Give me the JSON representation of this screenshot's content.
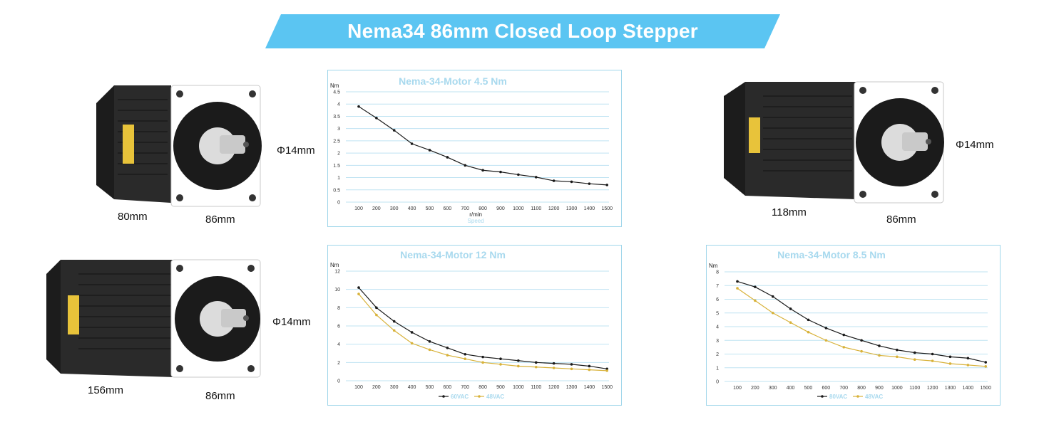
{
  "banner": {
    "title": "Nema34 86mm Closed Loop Stepper"
  },
  "motors": [
    {
      "length": "80mm",
      "face": "86mm",
      "shaft": "Φ14mm"
    },
    {
      "length": "118mm",
      "face": "86mm",
      "shaft": "Φ14mm"
    },
    {
      "length": "156mm",
      "face": "86mm",
      "shaft": "Φ14mm"
    }
  ],
  "colors": {
    "banner": "#5bc5f2",
    "frame": "#9fd6ea",
    "title": "#a8d9ee",
    "grid": "#bfe3f2",
    "series_black": "#1a1a1a",
    "series_gold": "#d8b23a"
  },
  "chart_data": [
    {
      "type": "line",
      "title": "Nema-34-Motor 4.5 Nm",
      "ylabel": "Nm",
      "xlabel": "r/min",
      "xlabel2": "Speed",
      "x": [
        100,
        200,
        300,
        400,
        500,
        600,
        700,
        800,
        900,
        1000,
        1100,
        1200,
        1300,
        1400,
        1500
      ],
      "yticks": [
        "0",
        "0.5",
        "1",
        "1.5",
        "2",
        "2.5",
        "3",
        "3.5",
        "4",
        "4.5"
      ],
      "ylim": [
        0,
        4.5
      ],
      "grid": true,
      "series": [
        {
          "values": [
            3.9,
            3.43,
            2.93,
            2.38,
            2.12,
            1.83,
            1.5,
            1.3,
            1.23,
            1.12,
            1.02,
            0.87,
            0.83,
            0.75,
            0.7
          ]
        }
      ]
    },
    {
      "type": "line",
      "title": "Nema-34-Motor 12 Nm",
      "ylabel": "Nm",
      "x": [
        100,
        200,
        300,
        400,
        500,
        600,
        700,
        800,
        900,
        1000,
        1100,
        1200,
        1300,
        1400,
        1500
      ],
      "yticks": [
        "0",
        "2",
        "4",
        "6",
        "8",
        "10",
        "12"
      ],
      "ylim": [
        0,
        12
      ],
      "grid": true,
      "legend": "bottom",
      "series": [
        {
          "name": "60VAC",
          "values": [
            10.2,
            8.0,
            6.5,
            5.3,
            4.3,
            3.6,
            2.9,
            2.6,
            2.4,
            2.2,
            2.0,
            1.9,
            1.8,
            1.6,
            1.3
          ]
        },
        {
          "name": "48VAC",
          "values": [
            9.5,
            7.2,
            5.5,
            4.1,
            3.4,
            2.8,
            2.4,
            2.0,
            1.8,
            1.6,
            1.5,
            1.4,
            1.3,
            1.2,
            1.1
          ]
        }
      ]
    },
    {
      "type": "line",
      "title": "Nema-34-Motor 8.5 Nm",
      "ylabel": "Nm",
      "x": [
        100,
        200,
        300,
        400,
        500,
        600,
        700,
        800,
        900,
        1000,
        1100,
        1200,
        1300,
        1400,
        1500
      ],
      "yticks": [
        "0",
        "1",
        "2",
        "3",
        "4",
        "5",
        "6",
        "7",
        "8"
      ],
      "ylim": [
        0,
        8
      ],
      "grid": true,
      "legend": "bottom",
      "series": [
        {
          "name": "80VAC",
          "values": [
            7.3,
            6.9,
            6.2,
            5.3,
            4.5,
            3.9,
            3.4,
            3.0,
            2.6,
            2.3,
            2.1,
            2.0,
            1.8,
            1.7,
            1.4
          ]
        },
        {
          "name": "48VAC",
          "values": [
            6.8,
            5.9,
            5.0,
            4.3,
            3.6,
            3.0,
            2.5,
            2.2,
            1.9,
            1.8,
            1.6,
            1.5,
            1.3,
            1.2,
            1.1
          ]
        }
      ]
    }
  ]
}
